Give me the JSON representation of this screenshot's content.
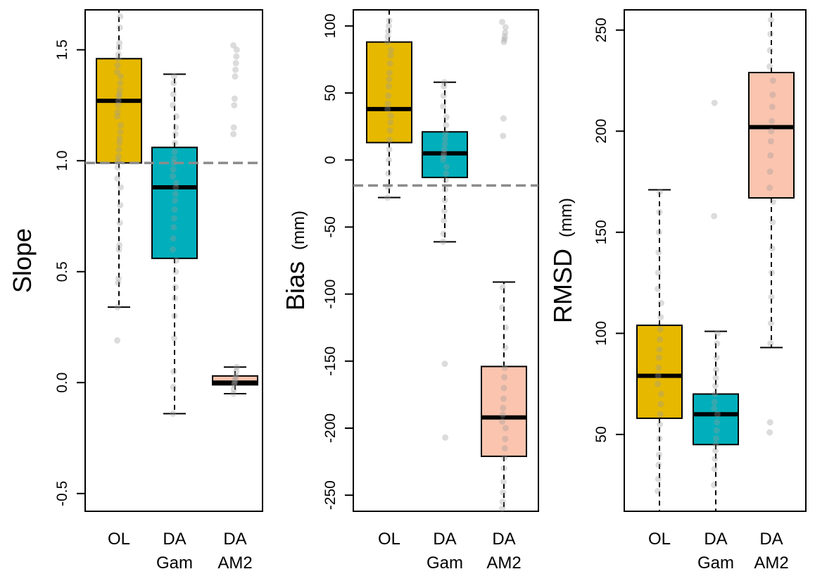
{
  "colors": {
    "ol": "#E6B800",
    "gam": "#00AFBB",
    "am2": "#FBC4AE",
    "ref": "#8c8c8c",
    "point": "#9a9a9a"
  },
  "chart_data": [
    {
      "type": "box",
      "ylabel": "Slope",
      "ylabel_unit": "",
      "categories": [
        "OL",
        "DA\nGam",
        "DA\nAM2"
      ],
      "yticks": [
        -0.5,
        0.0,
        0.5,
        1.0,
        1.5
      ],
      "ytick_labels": [
        "-0.5",
        "0.0",
        "0.5",
        "1.0",
        "1.5"
      ],
      "ylim": [
        -0.58,
        1.68
      ],
      "reference_line": 0.99,
      "boxes": [
        {
          "whisker_low": 0.34,
          "q1": 0.99,
          "median": 1.27,
          "q3": 1.46,
          "whisker_high": 1.68,
          "outliers": [
            0.19
          ],
          "points": [
            0.19,
            0.34,
            0.45,
            0.47,
            0.6,
            0.62,
            0.72,
            0.8,
            0.88,
            0.92,
            0.97,
            1.0,
            1.02,
            1.05,
            1.08,
            1.1,
            1.13,
            1.16,
            1.2,
            1.22,
            1.25,
            1.27,
            1.29,
            1.3,
            1.32,
            1.35,
            1.38,
            1.4,
            1.43,
            1.46,
            1.48,
            1.51,
            1.53,
            1.6,
            1.65
          ]
        },
        {
          "whisker_low": -0.14,
          "q1": 0.56,
          "median": 0.88,
          "q3": 1.06,
          "whisker_high": 1.39,
          "outliers": [],
          "points": [
            -0.14,
            -0.02,
            0.05,
            0.2,
            0.3,
            0.38,
            0.43,
            0.5,
            0.55,
            0.6,
            0.65,
            0.7,
            0.74,
            0.78,
            0.82,
            0.85,
            0.88,
            0.9,
            0.93,
            0.96,
            0.99,
            1.01,
            1.04,
            1.08,
            1.12,
            1.15,
            1.2,
            1.25,
            1.3,
            1.35,
            1.38
          ]
        },
        {
          "whisker_low": -0.05,
          "q1": -0.01,
          "median": 0.0,
          "q3": 0.03,
          "whisker_high": 0.07,
          "outliers": [
            1.12,
            1.15,
            1.25,
            1.28,
            1.38,
            1.41,
            1.44,
            1.47,
            1.5,
            1.52
          ],
          "points": [
            -0.05,
            -0.03,
            -0.01,
            0.0,
            0.01,
            0.02,
            0.03,
            0.05,
            0.07,
            1.12,
            1.15,
            1.25,
            1.28,
            1.38,
            1.41,
            1.44,
            1.47,
            1.5,
            1.52
          ]
        }
      ]
    },
    {
      "type": "box",
      "ylabel": "Bias",
      "ylabel_unit": "(mm)",
      "categories": [
        "OL",
        "DA\nGam",
        "DA\nAM2"
      ],
      "yticks": [
        -250,
        -200,
        -150,
        -100,
        -50,
        0,
        50,
        100
      ],
      "ytick_labels": [
        "-250",
        "-200",
        "-150",
        "-100",
        "-50",
        "0",
        "50",
        "100"
      ],
      "ylim": [
        -262,
        112
      ],
      "reference_line": -19,
      "boxes": [
        {
          "whisker_low": -28,
          "q1": 13,
          "median": 38,
          "q3": 88,
          "whisker_high": 112,
          "outliers": [],
          "points": [
            -28,
            -20,
            -10,
            0,
            8,
            15,
            22,
            28,
            33,
            38,
            42,
            48,
            55,
            60,
            65,
            72,
            78,
            82,
            88,
            92,
            96,
            100,
            104
          ]
        },
        {
          "whisker_low": -61,
          "q1": -13,
          "median": 5,
          "q3": 21,
          "whisker_high": 58,
          "outliers": [
            -152,
            -207
          ],
          "points": [
            -61,
            -55,
            -45,
            -38,
            -30,
            -22,
            -15,
            -10,
            -5,
            0,
            3,
            5,
            8,
            12,
            16,
            20,
            26,
            32,
            40,
            48,
            55,
            58,
            -152,
            -207
          ]
        },
        {
          "whisker_low": -262,
          "q1": -221,
          "median": -192,
          "q3": -154,
          "whisker_high": -91,
          "outliers": [
            18,
            31,
            88,
            90,
            92,
            95,
            99,
            103
          ],
          "points": [
            -260,
            -255,
            -248,
            -240,
            -230,
            -222,
            -215,
            -208,
            -200,
            -195,
            -190,
            -185,
            -178,
            -170,
            -162,
            -155,
            -140,
            -125,
            -110,
            -95,
            18,
            31,
            88,
            90,
            92,
            95,
            99,
            103
          ]
        }
      ]
    },
    {
      "type": "box",
      "ylabel": "RMSD",
      "ylabel_unit": "(mm)",
      "categories": [
        "OL",
        "DA\nGam",
        "DA\nAM2"
      ],
      "yticks": [
        50,
        100,
        150,
        200,
        250
      ],
      "ytick_labels": [
        "50",
        "100",
        "150",
        "200",
        "250"
      ],
      "ylim": [
        12,
        260
      ],
      "reference_line": null,
      "boxes": [
        {
          "whisker_low": 12,
          "q1": 58,
          "median": 79,
          "q3": 104,
          "whisker_high": 171,
          "outliers": [],
          "points": [
            22,
            28,
            35,
            40,
            48,
            55,
            60,
            65,
            70,
            75,
            79,
            83,
            88,
            92,
            97,
            102,
            108,
            115,
            122,
            130,
            140,
            150,
            160,
            170
          ]
        },
        {
          "whisker_low": 12,
          "q1": 45,
          "median": 60,
          "q3": 70,
          "whisker_high": 101,
          "outliers": [
            158,
            214
          ],
          "points": [
            25,
            33,
            38,
            42,
            45,
            48,
            52,
            56,
            60,
            63,
            66,
            70,
            74,
            78,
            82,
            88,
            95,
            100,
            158,
            214
          ]
        },
        {
          "whisker_low": 93,
          "q1": 167,
          "median": 202,
          "q3": 229,
          "whisker_high": 260,
          "outliers": [
            51,
            56
          ],
          "points": [
            51,
            56,
            95,
            105,
            118,
            130,
            142,
            155,
            165,
            172,
            180,
            188,
            195,
            200,
            205,
            212,
            218,
            225,
            232,
            240,
            248,
            255
          ]
        }
      ]
    }
  ]
}
